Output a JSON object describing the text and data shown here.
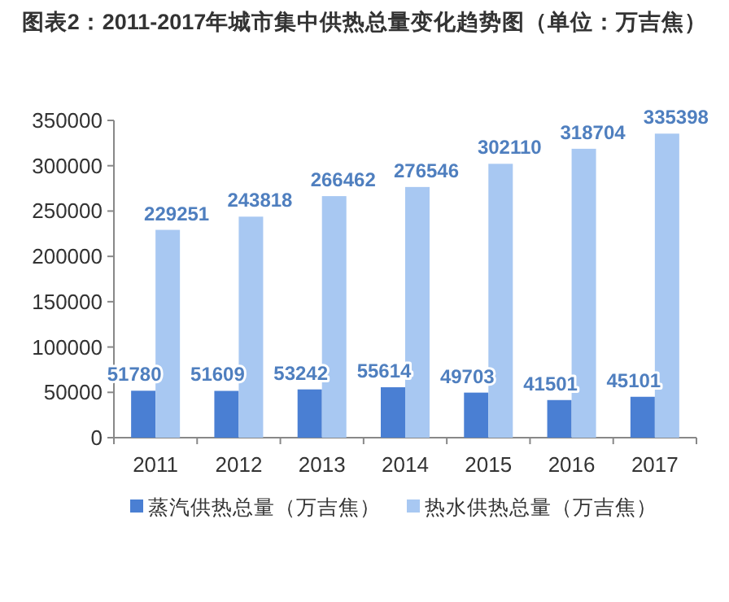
{
  "chart_data": {
    "type": "bar",
    "title": "图表2：2011-2017年城市集中供热总量变化趋势图（单位：万吉焦）",
    "categories": [
      "2011",
      "2012",
      "2013",
      "2014",
      "2015",
      "2016",
      "2017"
    ],
    "series": [
      {
        "name": "蒸汽供热总量（万吉焦）",
        "color": "#4a7fd3",
        "values": [
          51780,
          51609,
          53242,
          55614,
          49703,
          41501,
          45101
        ]
      },
      {
        "name": "热水供热总量（万吉焦）",
        "color": "#a8c8f2",
        "values": [
          229251,
          243818,
          266462,
          276546,
          302110,
          318704,
          335398
        ]
      }
    ],
    "ylim": [
      0,
      350000
    ],
    "yticks": [
      0,
      50000,
      100000,
      150000,
      200000,
      250000,
      300000,
      350000
    ],
    "data_labels": true,
    "legend": "bottom",
    "grid": false
  }
}
